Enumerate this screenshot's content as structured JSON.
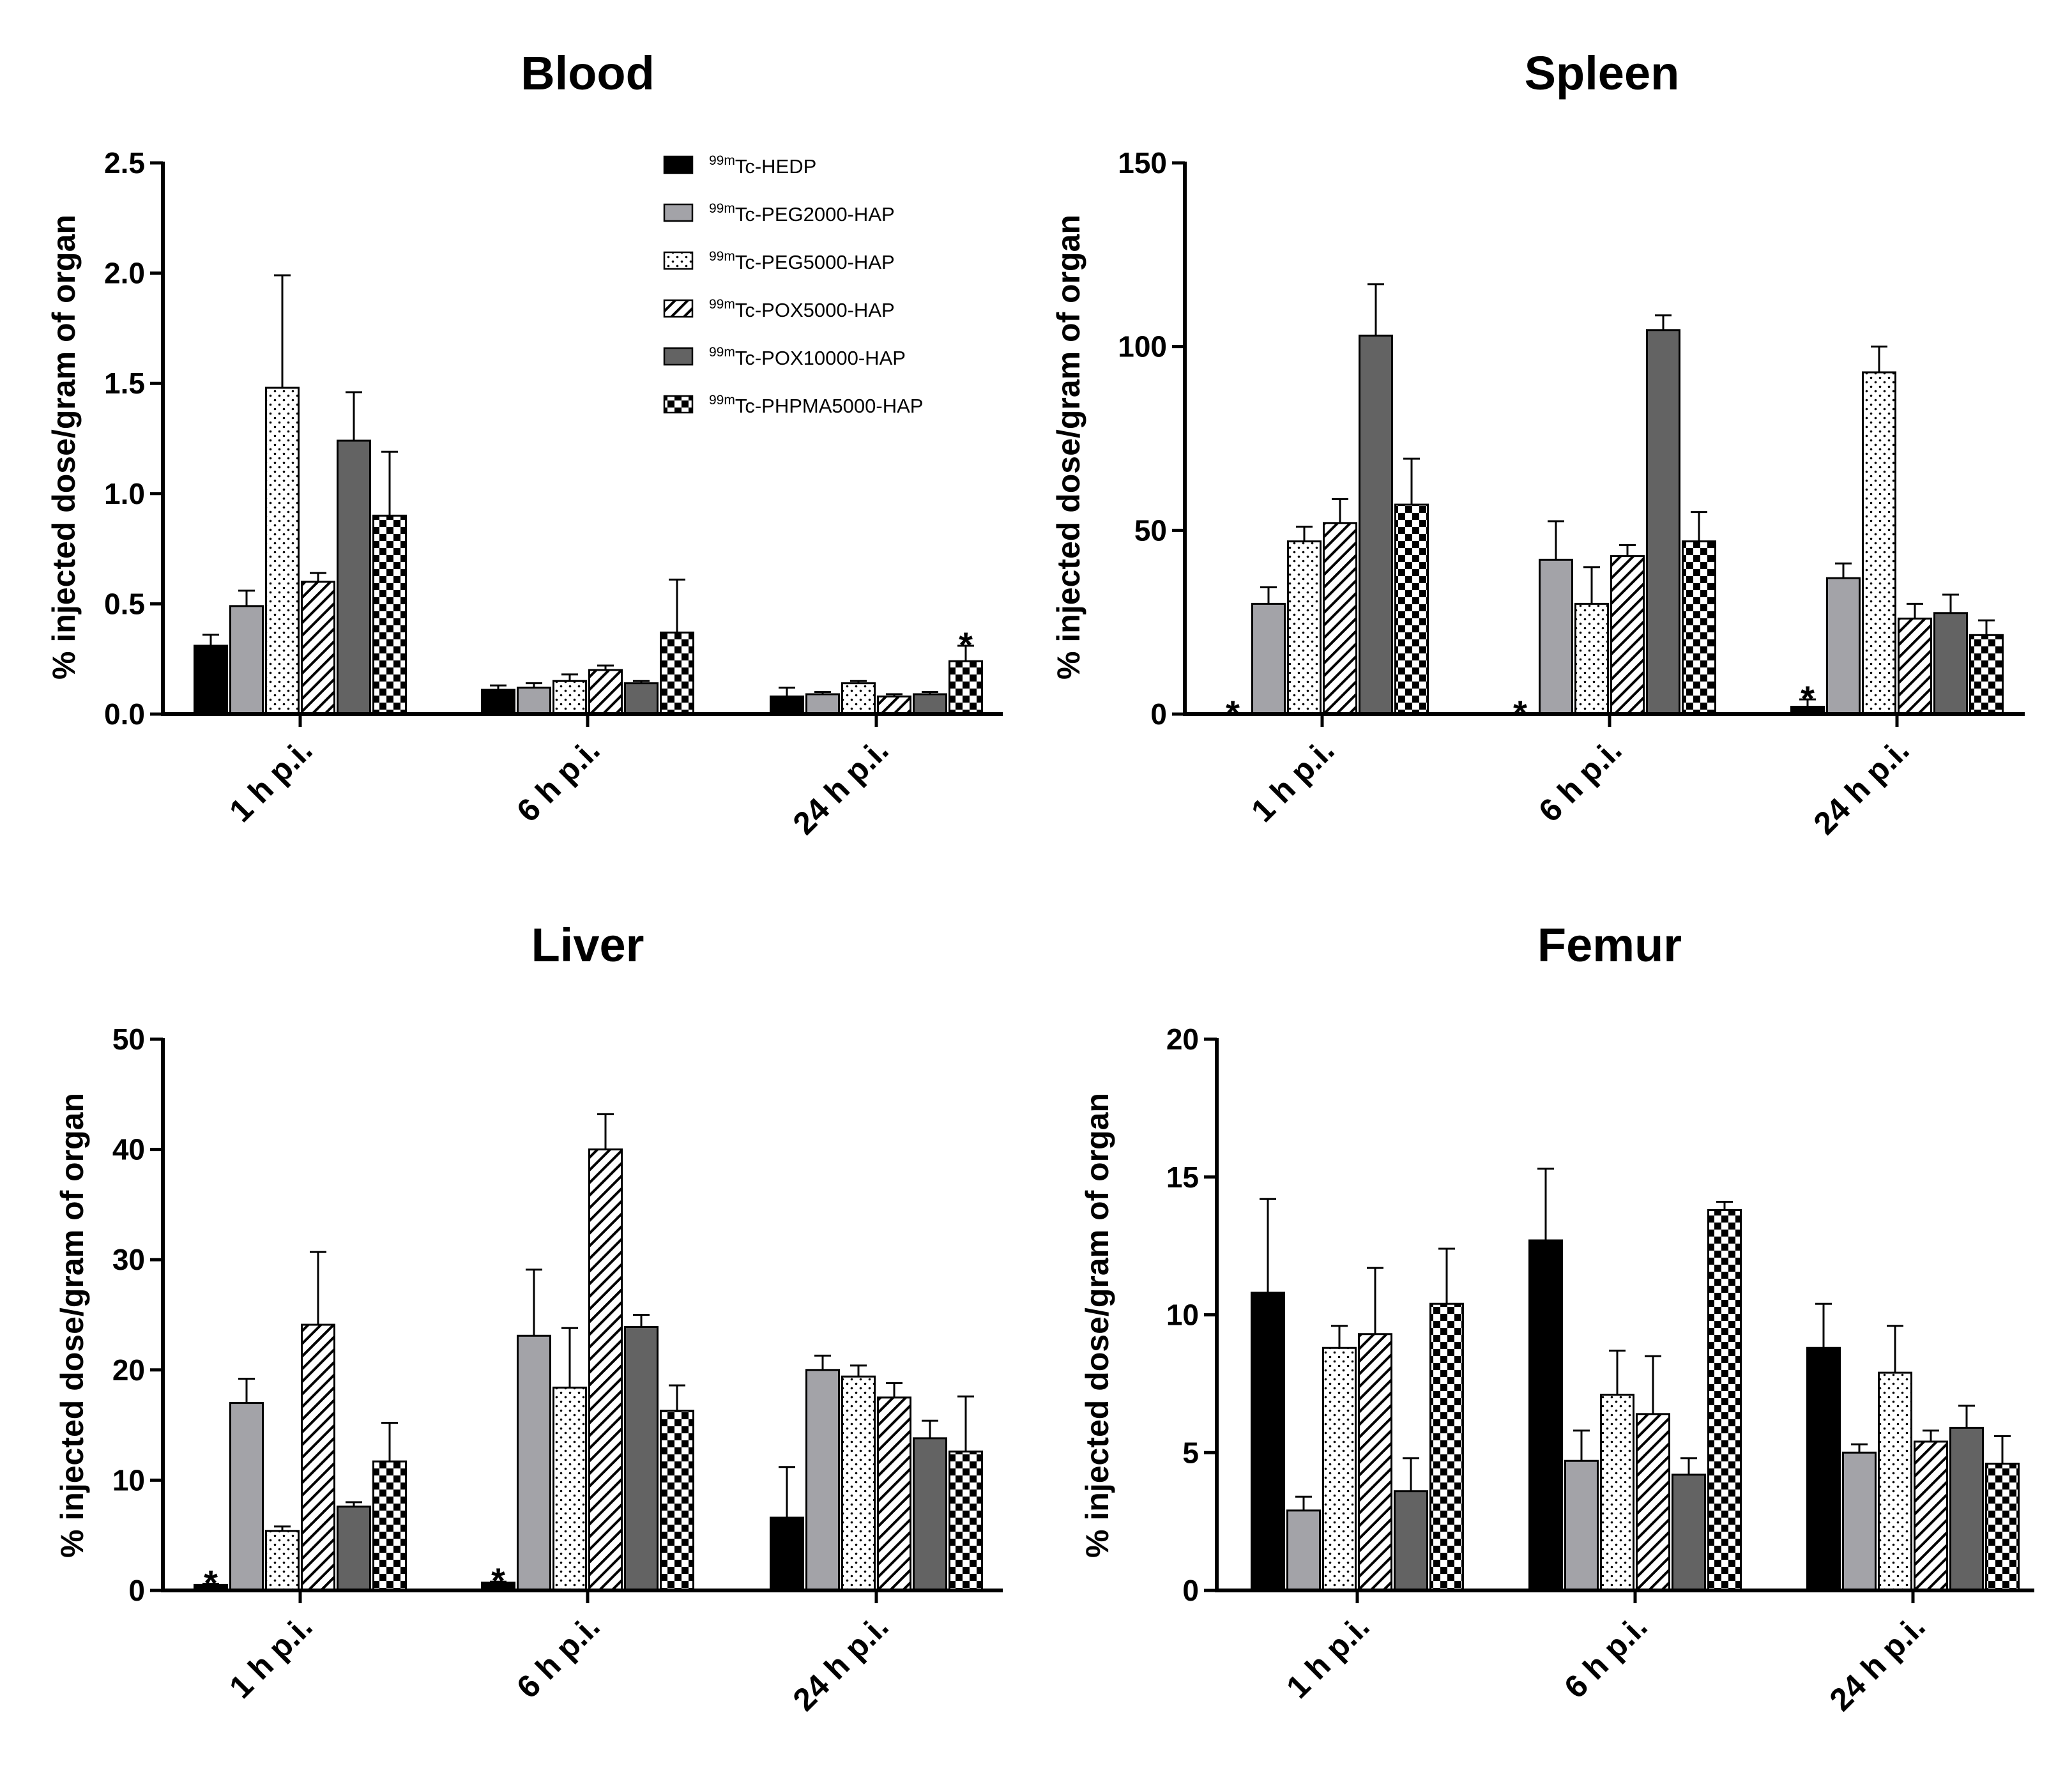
{
  "chart_data": [
    {
      "type": "bar",
      "title": "Blood",
      "ylabel": "% injected dose/gram of organ",
      "xlabel": "",
      "ylim": [
        0,
        2.5
      ],
      "yticks": [
        "0.0",
        "0.5",
        "1.0",
        "1.5",
        "2.0",
        "2.5"
      ],
      "ytick_values": [
        0,
        0.5,
        1.0,
        1.5,
        2.0,
        2.5
      ],
      "categories": [
        "1 h p.i.",
        "6 h p.i.",
        "24 h p.i."
      ],
      "series": [
        {
          "name": "99mTc-HEDP",
          "values": [
            0.31,
            0.11,
            0.08
          ],
          "errors": [
            0.05,
            0.02,
            0.04
          ]
        },
        {
          "name": "99mTc-PEG2000-HAP",
          "values": [
            0.49,
            0.12,
            0.09
          ],
          "errors": [
            0.07,
            0.02,
            0.01
          ]
        },
        {
          "name": "99mTc-PEG5000-HAP",
          "values": [
            1.48,
            0.15,
            0.14
          ],
          "errors": [
            0.51,
            0.03,
            0.01
          ]
        },
        {
          "name": "99mTc-POX5000-HAP",
          "values": [
            0.6,
            0.2,
            0.08
          ],
          "errors": [
            0.04,
            0.02,
            0.01
          ]
        },
        {
          "name": "99mTc-POX10000-HAP",
          "values": [
            1.24,
            0.14,
            0.09
          ],
          "errors": [
            0.22,
            0.01,
            0.01
          ]
        },
        {
          "name": "99mTc-PHPMA5000-HAP",
          "values": [
            0.9,
            0.37,
            0.24
          ],
          "errors": [
            0.29,
            0.24,
            0.07
          ]
        }
      ],
      "annotations": [
        {
          "text": "*",
          "category": 2,
          "series": 5
        }
      ],
      "legend": "top-right"
    },
    {
      "type": "bar",
      "title": "Spleen",
      "ylabel": "% injected dose/gram of organ",
      "xlabel": "",
      "ylim": [
        0,
        150
      ],
      "yticks": [
        "0",
        "50",
        "100",
        "150"
      ],
      "ytick_values": [
        0,
        50,
        100,
        150
      ],
      "categories": [
        "1 h p.i.",
        "6 h p.i.",
        "24 h p.i."
      ],
      "series": [
        {
          "name": "99mTc-HEDP",
          "values": [
            0,
            0,
            2
          ],
          "errors": [
            0,
            0,
            2
          ]
        },
        {
          "name": "99mTc-PEG2000-HAP",
          "values": [
            30,
            42,
            37
          ],
          "errors": [
            4.5,
            10.5,
            4
          ]
        },
        {
          "name": "99mTc-PEG5000-HAP",
          "values": [
            47,
            30,
            93
          ],
          "errors": [
            4,
            10,
            7
          ]
        },
        {
          "name": "99mTc-POX5000-HAP",
          "values": [
            52,
            43,
            26
          ],
          "errors": [
            6.5,
            3,
            4
          ]
        },
        {
          "name": "99mTc-POX10000-HAP",
          "values": [
            103,
            104.5,
            27.5
          ],
          "errors": [
            14,
            4,
            5
          ]
        },
        {
          "name": "99mTc-PHPMA5000-HAP",
          "values": [
            57,
            47,
            21.5
          ],
          "errors": [
            12.5,
            8,
            4
          ]
        }
      ],
      "annotations": [
        {
          "text": "*",
          "category": 0,
          "series": 0
        },
        {
          "text": "*",
          "category": 1,
          "series": 0
        },
        {
          "text": "*",
          "category": 2,
          "series": 0
        }
      ]
    },
    {
      "type": "bar",
      "title": "Liver",
      "ylabel": "% injected dose/gram of organ",
      "xlabel": "",
      "ylim": [
        0,
        50
      ],
      "yticks": [
        "0",
        "10",
        "20",
        "30",
        "40",
        "50"
      ],
      "ytick_values": [
        0,
        10,
        20,
        30,
        40,
        50
      ],
      "categories": [
        "1 h p.i.",
        "6 h p.i.",
        "24 h p.i."
      ],
      "series": [
        {
          "name": "99mTc-HEDP",
          "values": [
            0.5,
            0.7,
            6.6
          ],
          "errors": [
            0.1,
            0.1,
            4.6
          ]
        },
        {
          "name": "99mTc-PEG2000-HAP",
          "values": [
            17.0,
            23.1,
            20.0
          ],
          "errors": [
            2.2,
            6.0,
            1.3
          ]
        },
        {
          "name": "99mTc-PEG5000-HAP",
          "values": [
            5.4,
            18.4,
            19.4
          ],
          "errors": [
            0.4,
            5.4,
            1.0
          ]
        },
        {
          "name": "99mTc-POX5000-HAP",
          "values": [
            24.1,
            40.0,
            17.5
          ],
          "errors": [
            6.6,
            3.2,
            1.3
          ]
        },
        {
          "name": "99mTc-POX10000-HAP",
          "values": [
            7.6,
            23.9,
            13.8
          ],
          "errors": [
            0.4,
            1.1,
            1.6
          ]
        },
        {
          "name": "99mTc-PHPMA5000-HAP",
          "values": [
            11.7,
            16.3,
            12.6
          ],
          "errors": [
            3.5,
            2.3,
            5.0
          ]
        }
      ],
      "annotations": [
        {
          "text": "*",
          "category": 0,
          "series": 0
        },
        {
          "text": "*",
          "category": 1,
          "series": 0
        }
      ]
    },
    {
      "type": "bar",
      "title": "Femur",
      "ylabel": "% injected dose/gram of organ",
      "xlabel": "",
      "ylim": [
        0,
        20
      ],
      "yticks": [
        "0",
        "5",
        "10",
        "15",
        "20"
      ],
      "ytick_values": [
        0,
        5,
        10,
        15,
        20
      ],
      "categories": [
        "1 h p.i.",
        "6 h p.i.",
        "24 h p.i."
      ],
      "series": [
        {
          "name": "99mTc-HEDP",
          "values": [
            10.8,
            12.7,
            8.8
          ],
          "errors": [
            3.4,
            2.6,
            1.6
          ]
        },
        {
          "name": "99mTc-PEG2000-HAP",
          "values": [
            2.9,
            4.7,
            5.0
          ],
          "errors": [
            0.5,
            1.1,
            0.3
          ]
        },
        {
          "name": "99mTc-PEG5000-HAP",
          "values": [
            8.8,
            7.1,
            7.9
          ],
          "errors": [
            0.8,
            1.6,
            1.7
          ]
        },
        {
          "name": "99mTc-POX5000-HAP",
          "values": [
            9.3,
            6.4,
            5.4
          ],
          "errors": [
            2.4,
            2.1,
            0.4
          ]
        },
        {
          "name": "99mTc-POX10000-HAP",
          "values": [
            3.6,
            4.2,
            5.9
          ],
          "errors": [
            1.2,
            0.6,
            0.8
          ]
        },
        {
          "name": "99mTc-PHPMA5000-HAP",
          "values": [
            10.4,
            13.8,
            4.6
          ],
          "errors": [
            2.0,
            0.3,
            1.0
          ]
        }
      ]
    }
  ],
  "legend": {
    "entries": [
      {
        "sup": "99m",
        "label": "Tc-HEDP",
        "pattern": "solid-black"
      },
      {
        "sup": "99m",
        "label": "Tc-PEG2000-HAP",
        "pattern": "solid-lightgray"
      },
      {
        "sup": "99m",
        "label": "Tc-PEG5000-HAP",
        "pattern": "dots"
      },
      {
        "sup": "99m",
        "label": "Tc-POX5000-HAP",
        "pattern": "diagonal"
      },
      {
        "sup": "99m",
        "label": "Tc-POX10000-HAP",
        "pattern": "solid-darkgray"
      },
      {
        "sup": "99m",
        "label": "Tc-PHPMA5000-HAP",
        "pattern": "checker"
      }
    ]
  },
  "colors": {
    "black": "#000000",
    "lightgray": "#a3a3a8",
    "darkgray": "#636363",
    "white": "#ffffff"
  }
}
